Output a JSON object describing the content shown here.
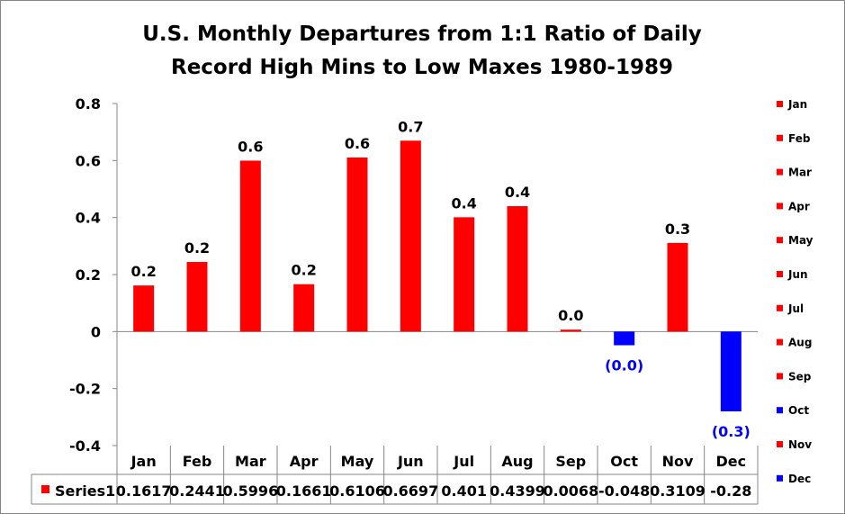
{
  "chart_data": {
    "type": "bar",
    "title_lines": [
      "U.S. Monthly Departures from 1:1 Ratio of Daily",
      "Record High Mins to Low Maxes 1980-1989"
    ],
    "categories": [
      "Jan",
      "Feb",
      "Mar",
      "Apr",
      "May",
      "Jun",
      "Jul",
      "Aug",
      "Sep",
      "Oct",
      "Nov",
      "Dec"
    ],
    "series": [
      {
        "name": "Series1",
        "values": [
          0.1617,
          0.2441,
          0.5996,
          0.1661,
          0.6106,
          0.6697,
          0.401,
          0.4399,
          0.0068,
          -0.048,
          0.3109,
          -0.28
        ],
        "table_labels": [
          "0.1617",
          "0.2441",
          "0.5996",
          "0.1661",
          "0.6106",
          "0.6697",
          "0.401",
          "0.4399",
          "0.0068",
          "-0.048",
          "0.3109",
          "-0.28"
        ]
      }
    ],
    "data_labels": [
      "0.2",
      "0.2",
      "0.6",
      "0.2",
      "0.6",
      "0.7",
      "0.4",
      "0.4",
      "0.0",
      "(0.0)",
      "0.3",
      "(0.3)"
    ],
    "ylim": [
      -0.4,
      0.8
    ],
    "yticks": [
      -0.4,
      -0.2,
      0,
      0.2,
      0.4,
      0.6,
      0.8
    ],
    "ytick_labels": [
      "-0.4",
      "-0.2",
      "0",
      "0.2",
      "0.4",
      "0.6",
      "0.8"
    ],
    "colors": {
      "positive": "#ff0000",
      "negative": "#0000ff",
      "negative_label": "#0000ff",
      "positive_label": "#000000"
    },
    "legend_position": "right",
    "data_table": true,
    "grid": false
  }
}
